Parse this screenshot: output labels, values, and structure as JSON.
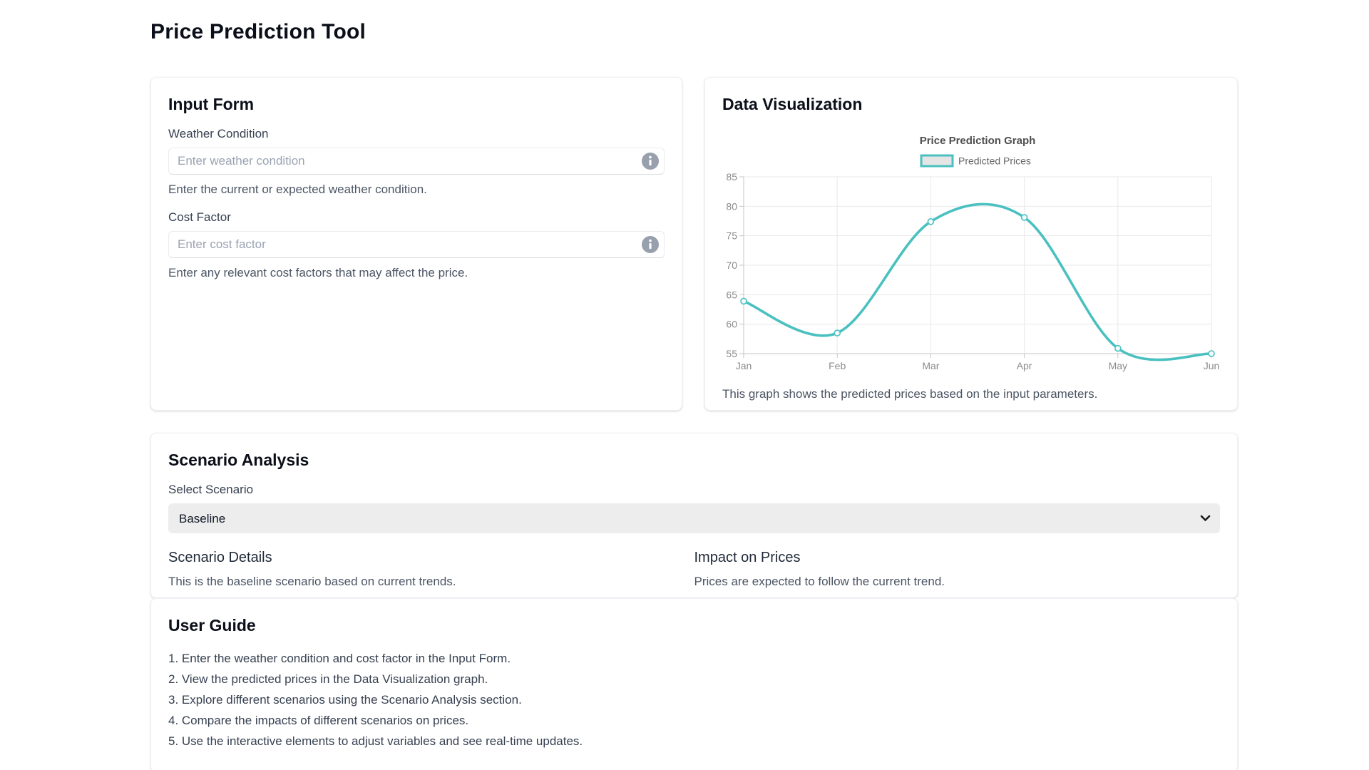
{
  "page": {
    "title": "Price Prediction Tool"
  },
  "input_form": {
    "title": "Input Form",
    "fields": [
      {
        "label": "Weather Condition",
        "placeholder": "Enter weather condition",
        "hint": "Enter the current or expected weather condition."
      },
      {
        "label": "Cost Factor",
        "placeholder": "Enter cost factor",
        "hint": "Enter any relevant cost factors that may affect the price."
      }
    ]
  },
  "data_visualization": {
    "title": "Data Visualization",
    "caption": "This graph shows the predicted prices based on the input parameters."
  },
  "chart_data": {
    "type": "line",
    "title": "Price Prediction Graph",
    "x": [
      "Jan",
      "Feb",
      "Mar",
      "Apr",
      "May",
      "Jun"
    ],
    "series": [
      {
        "name": "Predicted Prices",
        "values": [
          63.9,
          58.5,
          77.4,
          78.1,
          55.9,
          55.0
        ]
      }
    ],
    "ylim": [
      55,
      85
    ],
    "yticks": [
      55,
      60,
      65,
      70,
      75,
      80,
      85
    ],
    "grid": true,
    "legend_position": "top",
    "legend_label": "Predicted Prices",
    "line_color": "#4bc0c0",
    "legend_fill": "#e5e5e5",
    "grid_color": "#e9e9e9",
    "axis_color": "#c6c6c6",
    "tick_text_color": "#8b8b8b",
    "title_color": "#4e4e4e"
  },
  "scenario_analysis": {
    "title": "Scenario Analysis",
    "select_label": "Select Scenario",
    "selected_option": "Baseline",
    "details_title": "Scenario Details",
    "details_text": "This is the baseline scenario based on current trends.",
    "impact_title": "Impact on Prices",
    "impact_text": "Prices are expected to follow the current trend."
  },
  "user_guide": {
    "title": "User Guide",
    "steps": [
      "1. Enter the weather condition and cost factor in the Input Form.",
      "2. View the predicted prices in the Data Visualization graph.",
      "3. Explore different scenarios using the Scenario Analysis section.",
      "4. Compare the impacts of different scenarios on prices.",
      "5. Use the interactive elements to adjust variables and see real-time updates."
    ]
  },
  "colors": {
    "accent": "#4bc0c0"
  }
}
